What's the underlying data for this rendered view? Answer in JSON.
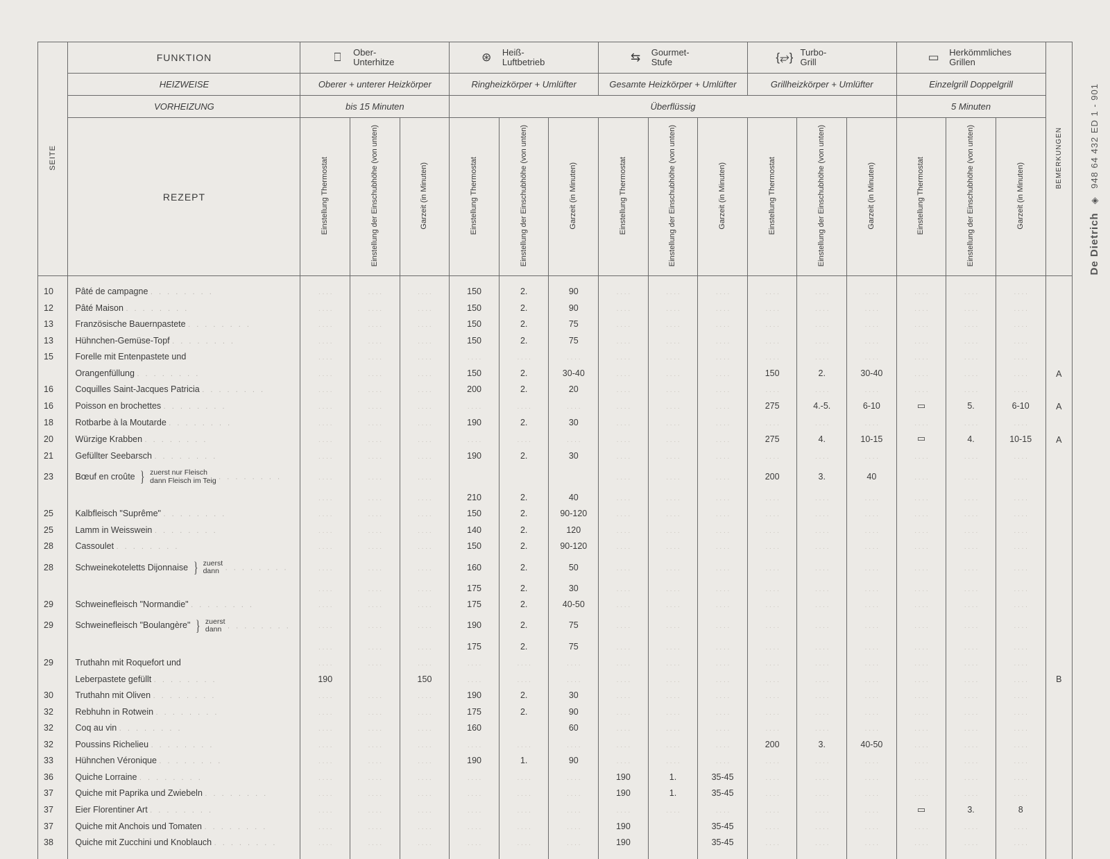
{
  "side_margin": {
    "brand": "De Dietrich",
    "code": "948 64 432 ED 1 - 901"
  },
  "header": {
    "funktion": "FUNKTION",
    "seite": "SEITE",
    "heizweise": "HEIZWEISE",
    "vorheizung": "VORHEIZUNG",
    "rezept": "REZEPT",
    "bemerkungen": "BEMERKUNGEN",
    "modes": [
      {
        "icon": "⎕",
        "line1": "Ober-",
        "line2": "Unterhitze"
      },
      {
        "icon": "⊛",
        "line1": "Heiß-",
        "line2": "Luftbetrieb"
      },
      {
        "icon": "⇆",
        "line1": "Gourmet-",
        "line2": "Stufe"
      },
      {
        "icon": "{⥂}",
        "line1": "Turbo-",
        "line2": "Grill"
      },
      {
        "icon": "▭",
        "line1": "Herkömmliches",
        "line2": "Grillen"
      }
    ],
    "heiz_row": [
      "Oberer + unterer Heizkörper",
      "Ringheizkörper + Umlüfter",
      "Gesamte Heizkörper + Umlüfter",
      "Grillheizkörper + Umlüfter",
      "Einzelgrill Doppelgrill"
    ],
    "vorh_row": {
      "c1": "bis 15 Minuten",
      "c_mid": "Überflüssig",
      "c5": "5 Minuten"
    },
    "subcols": [
      "Einstellung Thermostat",
      "Einstellung der Einschubhöhe (von unten)",
      "Garzeit (in Minuten)"
    ]
  },
  "rows": [
    {
      "pg": "10",
      "name": "Pâté de campagne",
      "hb": [
        "150",
        "2.",
        "90"
      ]
    },
    {
      "pg": "12",
      "name": "Pâté Maison",
      "hb": [
        "150",
        "2.",
        "90"
      ]
    },
    {
      "pg": "13",
      "name": "Französische Bauernpastete",
      "hb": [
        "150",
        "2.",
        "75"
      ]
    },
    {
      "pg": "13",
      "name": "Hühnchen-Gemüse-Topf",
      "hb": [
        "150",
        "2.",
        "75"
      ]
    },
    {
      "pg": "15",
      "name": "Forelle mit Entenpastete und",
      "cont": true
    },
    {
      "pg": "",
      "name": "Orangenfüllung",
      "hb": [
        "150",
        "2.",
        "30-40"
      ],
      "tg": [
        "150",
        "2.",
        "30-40"
      ],
      "bem": "A"
    },
    {
      "pg": "16",
      "name": "Coquilles Saint-Jacques Patricia",
      "hb": [
        "200",
        "2.",
        "20"
      ]
    },
    {
      "pg": "16",
      "name": "Poisson en brochettes",
      "tg": [
        "275",
        "4.-5.",
        "6-10"
      ],
      "hg": [
        "▭",
        "5.",
        "6-10"
      ],
      "bem": "A"
    },
    {
      "pg": "18",
      "name": "Rotbarbe à la Moutarde",
      "hb": [
        "190",
        "2.",
        "30"
      ]
    },
    {
      "pg": "20",
      "name": "Würzige Krabben",
      "tg": [
        "275",
        "4.",
        "10-15"
      ],
      "hg": [
        "▭",
        "4.",
        "10-15"
      ],
      "bem": "A"
    },
    {
      "pg": "21",
      "name": "Gefüllter Seebarsch",
      "hb": [
        "190",
        "2.",
        "30"
      ]
    },
    {
      "pg": "23",
      "name": "Bœuf en croûte",
      "note": "zuerst nur Fleisch / dann Fleisch im Teig",
      "hb": [
        "",
        "",
        ""
      ],
      "tg": [
        "200",
        "3.",
        "40"
      ]
    },
    {
      "pg": "",
      "name": "",
      "hb": [
        "210",
        "2.",
        "40"
      ]
    },
    {
      "pg": "25",
      "name": "Kalbfleisch \"Suprême\"",
      "hb": [
        "150",
        "2.",
        "90-120"
      ]
    },
    {
      "pg": "25",
      "name": "Lamm in Weisswein",
      "hb": [
        "140",
        "2.",
        "120"
      ]
    },
    {
      "pg": "28",
      "name": "Cassoulet",
      "hb": [
        "150",
        "2.",
        "90-120"
      ]
    },
    {
      "pg": "28",
      "name": "Schweinekoteletts Dijonnaise",
      "note": "zuerst / dann",
      "hb": [
        "160",
        "2.",
        "50"
      ]
    },
    {
      "pg": "",
      "name": "",
      "hb": [
        "175",
        "2.",
        "30"
      ]
    },
    {
      "pg": "29",
      "name": "Schweinefleisch \"Normandie\"",
      "hb": [
        "175",
        "2.",
        "40-50"
      ]
    },
    {
      "pg": "29",
      "name": "Schweinefleisch \"Boulangère\"",
      "note": "zuerst / dann",
      "hb": [
        "190",
        "2.",
        "75"
      ]
    },
    {
      "pg": "",
      "name": "",
      "hb": [
        "175",
        "2.",
        "75"
      ]
    },
    {
      "pg": "29",
      "name": "Truthahn mit Roquefort und",
      "cont": true
    },
    {
      "pg": "",
      "name": "Leberpastete gefüllt",
      "ou": [
        "190",
        "",
        "150"
      ],
      "bem": "B"
    },
    {
      "pg": "30",
      "name": "Truthahn mit Oliven",
      "hb": [
        "190",
        "2.",
        "30"
      ]
    },
    {
      "pg": "32",
      "name": "Rebhuhn in Rotwein",
      "hb": [
        "175",
        "2.",
        "90"
      ]
    },
    {
      "pg": "32",
      "name": "Coq au vin",
      "hb": [
        "160",
        "",
        "60"
      ]
    },
    {
      "pg": "32",
      "name": "Poussins Richelieu",
      "tg": [
        "200",
        "3.",
        "40-50"
      ]
    },
    {
      "pg": "33",
      "name": "Hühnchen Véronique",
      "hb": [
        "190",
        "1.",
        "90"
      ]
    },
    {
      "pg": "36",
      "name": "Quiche Lorraine",
      "gs": [
        "190",
        "1.",
        "35-45"
      ]
    },
    {
      "pg": "37",
      "name": "Quiche mit Paprika und Zwiebeln",
      "gs": [
        "190",
        "1.",
        "35-45"
      ]
    },
    {
      "pg": "37",
      "name": "Eier Florentiner Art",
      "hg": [
        "▭",
        "3.",
        "8"
      ]
    },
    {
      "pg": "37",
      "name": "Quiche mit Anchois und Tomaten",
      "gs": [
        "190",
        "",
        "35-45"
      ]
    },
    {
      "pg": "38",
      "name": "Quiche mit Zucchini und Knoblauch",
      "gs": [
        "190",
        "",
        "35-45"
      ]
    }
  ]
}
